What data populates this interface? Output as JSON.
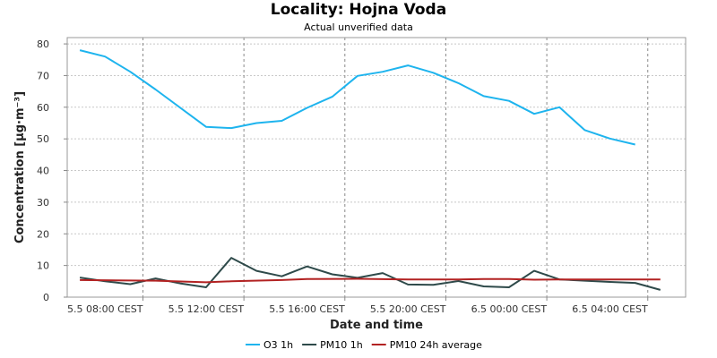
{
  "chart_data": {
    "type": "line",
    "title": "Locality: Hojna Voda",
    "subtitle": "Actual unverified data",
    "xlabel": "Date and time",
    "ylabel": "Concentration [µg·m⁻³]",
    "ylim": [
      0,
      82
    ],
    "xlim": [
      "2024-05-05 05:00",
      "2024-05-06 05:30"
    ],
    "y_ticks": [
      0,
      10,
      20,
      30,
      40,
      50,
      60,
      70,
      80
    ],
    "x_ticks": [
      {
        "t": "2024-05-05 08:00",
        "label": "5.5 08:00 CEST"
      },
      {
        "t": "2024-05-05 12:00",
        "label": "5.5 12:00 CEST"
      },
      {
        "t": "2024-05-05 16:00",
        "label": "5.5 16:00 CEST"
      },
      {
        "t": "2024-05-05 20:00",
        "label": "5.5 20:00 CEST"
      },
      {
        "t": "2024-05-06 00:00",
        "label": "6.5 00:00 CEST"
      },
      {
        "t": "2024-05-06 04:00",
        "label": "6.5 04:00 CEST"
      }
    ],
    "grid": true,
    "legend_position": "bottom",
    "series": [
      {
        "name": "O3 1h",
        "color": "#1eb4ee",
        "points": [
          [
            "2024-05-05 05:30",
            78
          ],
          [
            "2024-05-05 06:30",
            76
          ],
          [
            "2024-05-05 07:30",
            71.2
          ],
          [
            "2024-05-05 08:30",
            65.6
          ],
          [
            "2024-05-05 10:30",
            53.8
          ],
          [
            "2024-05-05 11:30",
            53.4
          ],
          [
            "2024-05-05 12:30",
            55
          ],
          [
            "2024-05-05 13:30",
            55.7
          ],
          [
            "2024-05-05 14:30",
            59.8
          ],
          [
            "2024-05-05 15:30",
            63.3
          ],
          [
            "2024-05-05 16:30",
            69.9
          ],
          [
            "2024-05-05 17:30",
            71.2
          ],
          [
            "2024-05-05 18:30",
            73.2
          ],
          [
            "2024-05-05 19:30",
            70.9
          ],
          [
            "2024-05-05 20:30",
            67.6
          ],
          [
            "2024-05-05 21:30",
            63.5
          ],
          [
            "2024-05-05 22:30",
            62
          ],
          [
            "2024-05-05 23:30",
            57.9
          ],
          [
            "2024-05-06 00:30",
            60
          ],
          [
            "2024-05-06 01:30",
            52.8
          ],
          [
            "2024-05-06 02:30",
            50.1
          ],
          [
            "2024-05-06 03:30",
            48.2
          ]
        ]
      },
      {
        "name": "PM10 1h",
        "color": "#2e4a4a",
        "points": [
          [
            "2024-05-05 05:30",
            6.2
          ],
          [
            "2024-05-05 06:30",
            5
          ],
          [
            "2024-05-05 07:30",
            4.1
          ],
          [
            "2024-05-05 08:30",
            5.9
          ],
          [
            "2024-05-05 09:30",
            4.3
          ],
          [
            "2024-05-05 10:30",
            3.1
          ],
          [
            "2024-05-05 11:30",
            12.4
          ],
          [
            "2024-05-05 12:30",
            8.3
          ],
          [
            "2024-05-05 13:30",
            6.6
          ],
          [
            "2024-05-05 14:30",
            9.7
          ],
          [
            "2024-05-05 15:30",
            7.2
          ],
          [
            "2024-05-05 16:30",
            6.1
          ],
          [
            "2024-05-05 17:30",
            7.6
          ],
          [
            "2024-05-05 18:30",
            4
          ],
          [
            "2024-05-05 19:30",
            3.9
          ],
          [
            "2024-05-05 20:30",
            5.1
          ],
          [
            "2024-05-05 21:30",
            3.4
          ],
          [
            "2024-05-05 22:30",
            3.1
          ],
          [
            "2024-05-05 23:30",
            8.3
          ],
          [
            "2024-05-06 00:30",
            5.6
          ],
          [
            "2024-05-06 01:30",
            5.2
          ],
          [
            "2024-05-06 02:30",
            4.8
          ],
          [
            "2024-05-06 03:30",
            4.5
          ],
          [
            "2024-05-06 04:30",
            2.3
          ]
        ]
      },
      {
        "name": "PM10 24h average",
        "color": "#b22222",
        "points": [
          [
            "2024-05-05 05:30",
            5.4
          ],
          [
            "2024-05-05 08:30",
            5.2
          ],
          [
            "2024-05-05 10:30",
            4.7
          ],
          [
            "2024-05-05 11:30",
            5
          ],
          [
            "2024-05-05 13:30",
            5.4
          ],
          [
            "2024-05-05 14:30",
            5.7
          ],
          [
            "2024-05-05 16:30",
            5.8
          ],
          [
            "2024-05-05 18:30",
            5.6
          ],
          [
            "2024-05-05 20:30",
            5.6
          ],
          [
            "2024-05-05 21:30",
            5.7
          ],
          [
            "2024-05-05 22:30",
            5.7
          ],
          [
            "2024-05-05 23:30",
            5.5
          ],
          [
            "2024-05-06 00:30",
            5.6
          ],
          [
            "2024-05-06 02:30",
            5.6
          ],
          [
            "2024-05-06 04:30",
            5.6
          ]
        ]
      }
    ]
  }
}
